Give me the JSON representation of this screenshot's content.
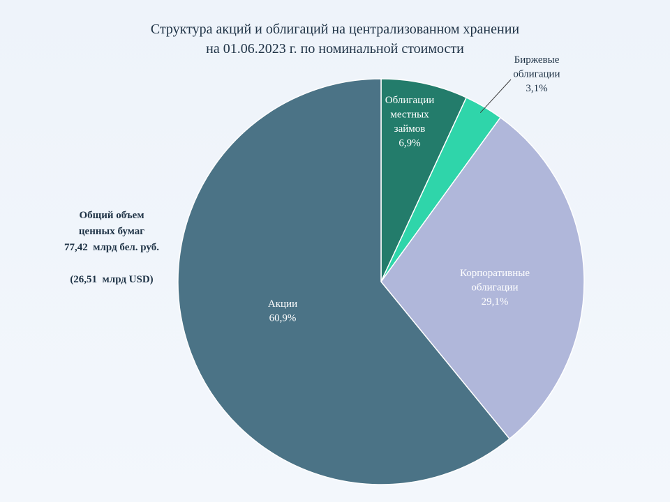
{
  "title_line1": "Структура акций и облигаций на централизованном хранении",
  "title_line2": "на 01.06.2023 г.  по номинальной стоимости",
  "total": {
    "line1": "Общий объем",
    "line2": "ценных бумаг",
    "line3": "77,42  млрд бел. руб.",
    "line4": "(26,51  млрд USD)"
  },
  "chart_data": {
    "type": "pie",
    "start": "12 o'clock",
    "direction": "clockwise",
    "slices": [
      {
        "name_lines": [
          "Облигации",
          "местных",
          "займов"
        ],
        "value": 6.9,
        "value_label": "6,9%",
        "color": "#237c6b",
        "label_color": "#ffffff"
      },
      {
        "name_lines": [
          "Биржевые",
          "облигации"
        ],
        "value": 3.1,
        "value_label": "3,1%",
        "color": "#2fd5aa",
        "label_color": "#1f3346"
      },
      {
        "name_lines": [
          "Корпоративные",
          "облигации"
        ],
        "value": 29.1,
        "value_label": "29,1%",
        "color": "#b0b7da",
        "label_color": "#ffffff"
      },
      {
        "name_lines": [
          "Акции"
        ],
        "value": 60.9,
        "value_label": "60,9%",
        "color": "#4b7386",
        "label_color": "#ffffff"
      }
    ]
  }
}
